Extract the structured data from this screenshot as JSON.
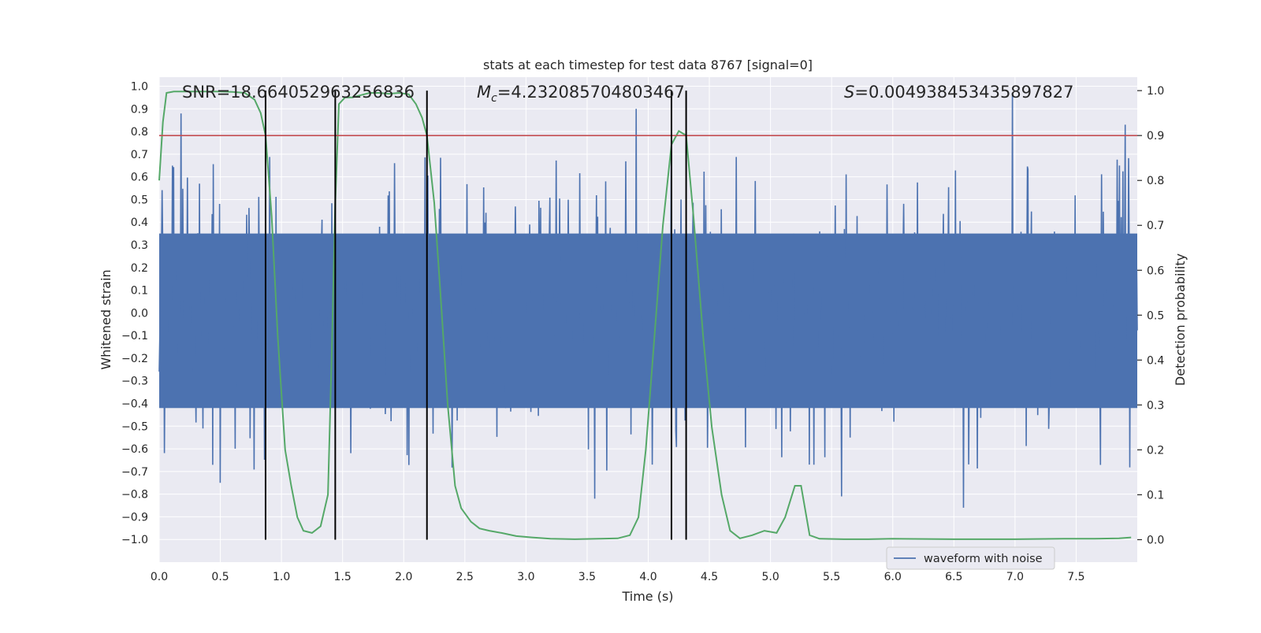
{
  "chart_data": {
    "type": "line",
    "title": "stats at each timestep for test data 8767 [signal=0]",
    "xlabel": "Time (s)",
    "ylabel_left": "Whitened strain",
    "ylabel_right": "Detection probability",
    "xlim": [
      0.0,
      8.0
    ],
    "ylim_left": [
      -1.1,
      1.04
    ],
    "ylim_right": [
      -0.05,
      1.03
    ],
    "x_ticks": [
      "0.0",
      "0.5",
      "1.0",
      "1.5",
      "2.0",
      "2.5",
      "3.0",
      "3.5",
      "4.0",
      "4.5",
      "5.0",
      "5.5",
      "6.0",
      "6.5",
      "7.0",
      "7.5"
    ],
    "y_left_ticks": [
      "1.0",
      "0.9",
      "0.8",
      "0.7",
      "0.6",
      "0.5",
      "0.4",
      "0.3",
      "0.2",
      "0.1",
      "0.0",
      "−0.1",
      "−0.2",
      "−0.3",
      "−0.4",
      "−0.5",
      "−0.6",
      "−0.7",
      "−0.8",
      "−0.9",
      "−1.0"
    ],
    "y_right_ticks": [
      "1.0",
      "0.9",
      "0.8",
      "0.7",
      "0.6",
      "0.5",
      "0.4",
      "0.3",
      "0.2",
      "0.1",
      "0.0"
    ],
    "annotations": {
      "snr": "SNR=18.664052963256836",
      "mc_symbol": "M",
      "mc_sub": "c",
      "mc_value": "=4.232085704803467",
      "s_symbol": "S",
      "s_value": "=0.004938453435897827"
    },
    "legend": {
      "label": "waveform with noise",
      "placement": "lower-right"
    },
    "colors": {
      "background": "#eaeaf2",
      "grid": "#ffffff",
      "waveform": "#4c72b0",
      "probability": "#55a868",
      "threshold": "#c44e52",
      "markers": "#000000"
    },
    "threshold_probability": 0.9,
    "vertical_markers_s": [
      0.87,
      1.44,
      2.19,
      4.19,
      4.31
    ],
    "waveform_noise": {
      "series_name": "waveform with noise",
      "dense_band": [
        -0.42,
        0.35
      ],
      "notable_peaks": [
        {
          "x": 0.18,
          "y": 0.88
        },
        {
          "x": 3.9,
          "y": 0.9
        },
        {
          "x": 6.98,
          "y": 0.97
        },
        {
          "x": 7.9,
          "y": 0.83
        },
        {
          "x": 6.58,
          "y": -0.86
        },
        {
          "x": 3.56,
          "y": -0.82
        },
        {
          "x": 5.58,
          "y": -0.81
        },
        {
          "x": 0.5,
          "y": -0.75
        }
      ]
    },
    "detection_probability": {
      "x": [
        0.0,
        0.03,
        0.06,
        0.12,
        0.2,
        0.3,
        0.4,
        0.5,
        0.6,
        0.7,
        0.78,
        0.83,
        0.87,
        0.92,
        0.97,
        1.03,
        1.08,
        1.13,
        1.18,
        1.25,
        1.32,
        1.38,
        1.41,
        1.44,
        1.47,
        1.52,
        1.58,
        1.65,
        1.72,
        1.8,
        1.88,
        1.96,
        2.04,
        2.1,
        2.15,
        2.19,
        2.25,
        2.3,
        2.36,
        2.42,
        2.47,
        2.55,
        2.62,
        2.7,
        2.8,
        2.92,
        3.05,
        3.2,
        3.4,
        3.6,
        3.75,
        3.85,
        3.92,
        3.98,
        4.05,
        4.12,
        4.19,
        4.25,
        4.31,
        4.37,
        4.45,
        4.52,
        4.6,
        4.67,
        4.75,
        4.85,
        4.95,
        5.05,
        5.12,
        5.2,
        5.25,
        5.32,
        5.4,
        5.6,
        5.8,
        6.0,
        6.5,
        7.0,
        7.4,
        7.65,
        7.85,
        7.95
      ],
      "y": [
        0.8,
        0.93,
        0.995,
        0.998,
        0.998,
        0.998,
        0.998,
        0.998,
        0.997,
        0.995,
        0.98,
        0.95,
        0.9,
        0.72,
        0.45,
        0.2,
        0.12,
        0.05,
        0.02,
        0.015,
        0.03,
        0.1,
        0.4,
        0.75,
        0.97,
        0.985,
        0.985,
        0.99,
        0.995,
        0.995,
        0.993,
        0.995,
        0.992,
        0.97,
        0.94,
        0.9,
        0.75,
        0.55,
        0.3,
        0.12,
        0.07,
        0.04,
        0.025,
        0.02,
        0.015,
        0.008,
        0.005,
        0.002,
        0.001,
        0.002,
        0.003,
        0.01,
        0.05,
        0.2,
        0.45,
        0.7,
        0.88,
        0.91,
        0.9,
        0.72,
        0.45,
        0.25,
        0.1,
        0.02,
        0.003,
        0.01,
        0.02,
        0.015,
        0.05,
        0.12,
        0.12,
        0.01,
        0.002,
        0.001,
        0.001,
        0.002,
        0.001,
        0.001,
        0.002,
        0.002,
        0.003,
        0.005
      ]
    }
  }
}
